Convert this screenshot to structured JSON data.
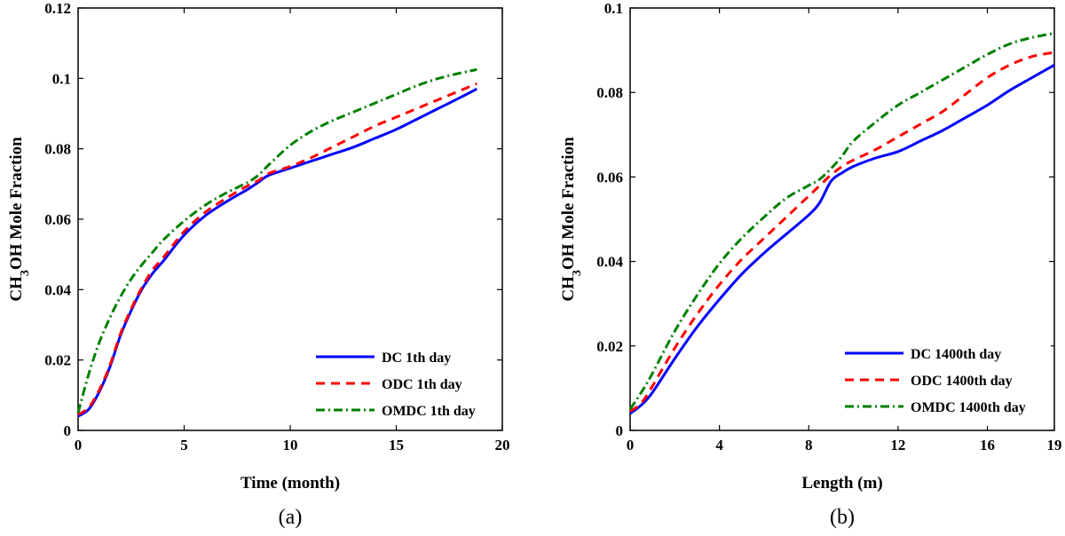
{
  "chart_data": [
    {
      "type": "line",
      "panel_label": "(a)",
      "xlabel": "Time (month)",
      "ylabel": "CH3OH Mole Fraction",
      "ylabel_parts": {
        "pre": "CH",
        "sub": "3",
        "post": "OH Mole Fraction"
      },
      "xlim": [
        0,
        20
      ],
      "ylim": [
        0,
        0.12
      ],
      "xticks": [
        0,
        5,
        10,
        15,
        20
      ],
      "xtick_labels": [
        "0",
        "5",
        "10",
        "15",
        "20"
      ],
      "yticks": [
        0,
        0.02,
        0.04,
        0.06,
        0.08,
        0.1,
        0.12
      ],
      "ytick_labels": [
        "0",
        "0.02",
        "0.04",
        "0.06",
        "0.08",
        "0.1",
        "0.12"
      ],
      "legend_position": "bottom-right",
      "series": [
        {
          "name": "DC 1th day",
          "color": "#0000ff",
          "style": "solid",
          "x": [
            0,
            0.5,
            1,
            1.5,
            2,
            2.5,
            3,
            3.5,
            4,
            5,
            6,
            7,
            8,
            8.5,
            9,
            10,
            11,
            12,
            13,
            14,
            15,
            16,
            17,
            18,
            18.8
          ],
          "y": [
            0.004,
            0.006,
            0.011,
            0.018,
            0.027,
            0.034,
            0.04,
            0.0445,
            0.048,
            0.0555,
            0.061,
            0.065,
            0.0685,
            0.0705,
            0.0725,
            0.0745,
            0.0765,
            0.0785,
            0.0805,
            0.083,
            0.0855,
            0.0885,
            0.0915,
            0.0945,
            0.097
          ]
        },
        {
          "name": "ODC 1th day",
          "color": "#ff0000",
          "style": "dashed",
          "x": [
            0,
            0.5,
            1,
            1.5,
            2,
            2.5,
            3,
            3.5,
            4,
            5,
            6,
            7,
            8,
            8.5,
            9,
            10,
            11,
            12,
            13,
            14,
            15,
            16,
            17,
            18,
            18.8
          ],
          "y": [
            0.0045,
            0.0065,
            0.0115,
            0.0185,
            0.0275,
            0.0345,
            0.0405,
            0.0455,
            0.049,
            0.0565,
            0.062,
            0.066,
            0.0695,
            0.071,
            0.073,
            0.075,
            0.0775,
            0.0805,
            0.0835,
            0.0865,
            0.089,
            0.0915,
            0.094,
            0.0965,
            0.0985
          ]
        },
        {
          "name": "OMDC 1th day",
          "color": "#008000",
          "style": "dashdot",
          "x": [
            0,
            0.5,
            1,
            1.5,
            2,
            2.5,
            3,
            3.5,
            4,
            5,
            6,
            7,
            8,
            8.5,
            9,
            10,
            11,
            12,
            13,
            14,
            15,
            16,
            17,
            18,
            18.8
          ],
          "y": [
            0.005,
            0.016,
            0.025,
            0.032,
            0.038,
            0.043,
            0.047,
            0.0505,
            0.054,
            0.0595,
            0.064,
            0.0675,
            0.0705,
            0.0725,
            0.0755,
            0.081,
            0.085,
            0.088,
            0.0905,
            0.093,
            0.0955,
            0.098,
            0.1,
            0.1015,
            0.1025
          ]
        }
      ]
    },
    {
      "type": "line",
      "panel_label": "(b)",
      "xlabel": "Length (m)",
      "ylabel": "CH3OH Mole Fraction",
      "ylabel_parts": {
        "pre": "CH",
        "sub": "3",
        "post": "OH Mole Fraction"
      },
      "xlim": [
        0,
        19
      ],
      "ylim": [
        0,
        0.1
      ],
      "xticks": [
        0,
        4,
        8,
        12,
        16,
        19
      ],
      "xtick_labels": [
        "0",
        "4",
        "8",
        "12",
        "16",
        "19"
      ],
      "yticks": [
        0,
        0.02,
        0.04,
        0.06,
        0.08,
        0.1
      ],
      "ytick_labels": [
        "0",
        "0.02",
        "0.04",
        "0.06",
        "0.08",
        "0.1"
      ],
      "legend_position": "bottom-right",
      "series": [
        {
          "name": "DC 1400th day",
          "color": "#0000ff",
          "style": "solid",
          "x": [
            0,
            0.5,
            1,
            2,
            3,
            4,
            5,
            6,
            7,
            8,
            8.5,
            9,
            9.5,
            10,
            11,
            12,
            13,
            14,
            15,
            16,
            17,
            18,
            19
          ],
          "y": [
            0.004,
            0.006,
            0.009,
            0.017,
            0.0245,
            0.031,
            0.037,
            0.042,
            0.0465,
            0.051,
            0.054,
            0.059,
            0.061,
            0.0625,
            0.0645,
            0.066,
            0.0685,
            0.071,
            0.074,
            0.077,
            0.0805,
            0.0835,
            0.0865
          ]
        },
        {
          "name": "ODC 1400th day",
          "color": "#ff0000",
          "style": "dashed",
          "x": [
            0,
            0.5,
            1,
            2,
            3,
            4,
            5,
            6,
            7,
            8,
            8.5,
            9,
            9.5,
            10,
            11,
            12,
            13,
            14,
            15,
            16,
            17,
            18,
            19
          ],
          "y": [
            0.0045,
            0.0065,
            0.0105,
            0.0195,
            0.0275,
            0.0345,
            0.0405,
            0.0455,
            0.0505,
            0.0555,
            0.058,
            0.0605,
            0.0625,
            0.064,
            0.0665,
            0.0695,
            0.0725,
            0.0755,
            0.0795,
            0.0835,
            0.0865,
            0.0885,
            0.0895
          ]
        },
        {
          "name": "OMDC 1400th day",
          "color": "#008000",
          "style": "dashdot",
          "x": [
            0,
            0.5,
            1,
            2,
            3,
            4,
            5,
            6,
            7,
            8,
            8.5,
            9,
            9.5,
            10,
            11,
            12,
            13,
            14,
            15,
            16,
            17,
            18,
            19
          ],
          "y": [
            0.005,
            0.009,
            0.0135,
            0.0235,
            0.032,
            0.0395,
            0.0455,
            0.0505,
            0.055,
            0.058,
            0.0595,
            0.062,
            0.065,
            0.0685,
            0.073,
            0.077,
            0.08,
            0.083,
            0.086,
            0.089,
            0.0915,
            0.093,
            0.094
          ]
        }
      ]
    }
  ]
}
